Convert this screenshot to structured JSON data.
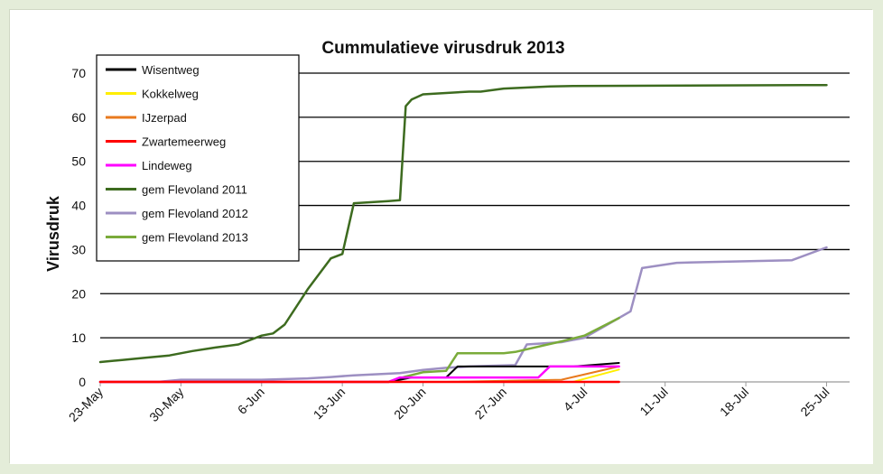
{
  "chart_data": {
    "type": "line",
    "title": "Cummulatieve virusdruk 2013",
    "xlabel": "",
    "ylabel": "Virusdruk",
    "ylim": [
      0,
      70
    ],
    "yticks": [
      0,
      10,
      20,
      30,
      40,
      50,
      60,
      70
    ],
    "x_tick_labels": [
      "23-May",
      "30-May",
      "6-Jun",
      "13-Jun",
      "20-Jun",
      "27-Jun",
      "4-Jul",
      "11-Jul",
      "18-Jul",
      "25-Jul"
    ],
    "x_tick_days": [
      0,
      7,
      14,
      21,
      28,
      35,
      42,
      49,
      56,
      63
    ],
    "xlim_days": [
      0,
      65
    ],
    "grid": "horizontal",
    "legend_position": "top-left",
    "series": [
      {
        "name": "Wisentweg",
        "color": "#000000",
        "width": 2,
        "x": [
          0,
          25,
          26,
          27,
          29,
          30,
          31,
          32,
          41,
          45
        ],
        "y": [
          0,
          0,
          0.5,
          1,
          1,
          1,
          3.5,
          3.5,
          3.5,
          4.3
        ]
      },
      {
        "name": "Kokkelweg",
        "color": "#ffee00",
        "width": 2,
        "x": [
          0,
          30,
          41,
          45
        ],
        "y": [
          0,
          0,
          0,
          2.8
        ]
      },
      {
        "name": "IJzerpad",
        "color": "#e87a1e",
        "width": 2,
        "x": [
          0,
          30,
          40,
          45
        ],
        "y": [
          0,
          0,
          0.5,
          3.5
        ]
      },
      {
        "name": "Zwartemeerweg",
        "color": "#ff0000",
        "width": 2.5,
        "x": [
          0,
          45
        ],
        "y": [
          0,
          0
        ]
      },
      {
        "name": "Lindeweg",
        "color": "#ff00ff",
        "width": 2.5,
        "x": [
          0,
          25,
          26,
          38,
          39,
          45
        ],
        "y": [
          0,
          0,
          1,
          1,
          3.5,
          3.5
        ]
      },
      {
        "name": "gem Flevoland 2011",
        "color": "#3d6b1f",
        "width": 2.5,
        "x": [
          0,
          2,
          4,
          6,
          8,
          10,
          12,
          14,
          15,
          16,
          18,
          20,
          21,
          22,
          25,
          26,
          26.5,
          27,
          28,
          32,
          33,
          35,
          39,
          41,
          63
        ],
        "y": [
          4.5,
          5,
          5.5,
          6,
          7,
          7.8,
          8.5,
          10.5,
          11,
          13,
          21,
          28,
          29,
          40.5,
          41,
          41.2,
          62.5,
          64,
          65.2,
          65.8,
          65.8,
          66.5,
          67,
          67.1,
          67.3
        ]
      },
      {
        "name": "gem Flevoland 2012",
        "color": "#9d8fc2",
        "width": 2.5,
        "x": [
          0,
          5,
          7,
          14,
          18,
          20,
          22,
          26,
          28,
          30,
          32,
          36,
          37,
          40,
          42,
          44,
          46,
          47,
          50,
          55,
          60,
          63
        ],
        "y": [
          0,
          0,
          0.5,
          0.5,
          0.8,
          1.1,
          1.5,
          2,
          2.7,
          3.2,
          3.5,
          3.8,
          8.5,
          9,
          10,
          13,
          16,
          25.8,
          27,
          27.3,
          27.6,
          30.5
        ]
      },
      {
        "name": "gem Flevoland 2013",
        "color": "#7aab3a",
        "width": 2.5,
        "x": [
          0,
          25,
          26.5,
          28,
          30,
          31,
          35,
          36,
          40,
          42,
          45
        ],
        "y": [
          0,
          0,
          1.2,
          2.2,
          2.5,
          6.5,
          6.5,
          6.8,
          9.2,
          10.5,
          14.5
        ]
      }
    ]
  }
}
